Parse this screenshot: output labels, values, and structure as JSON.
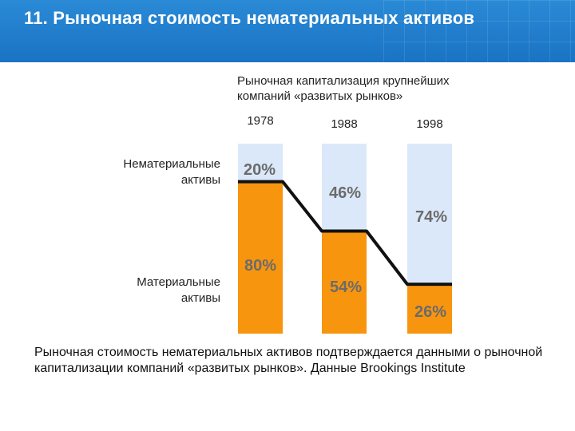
{
  "slide": {
    "title": "11. Рыночная стоимость нематериальных активов",
    "caption": "Рыночная стоимость нематериальных активов подтверждается данными о рыночной капитализации компаний «развитых рынков». Данные Brookings Institute"
  },
  "colors": {
    "header": "#1a73c4",
    "intangible": "#dbe8f9",
    "tangible": "#f7950f",
    "line": "#111111",
    "label_text": "#6b6b6b"
  },
  "chart_data": {
    "type": "bar",
    "stacked": true,
    "title": "Рыночная капитализация крупнейших компаний «развитых рынков»",
    "categories": [
      "1978",
      "1988",
      "1998"
    ],
    "ylim": [
      0,
      100
    ],
    "series": [
      {
        "name": "Материальные активы",
        "values": [
          80,
          54,
          26
        ],
        "labels": [
          "80%",
          "54%",
          "26%"
        ]
      },
      {
        "name": "Нематериальные активы",
        "values": [
          20,
          46,
          74
        ],
        "labels": [
          "20%",
          "46%",
          "74%"
        ]
      }
    ],
    "legend": [
      "Нематериальные активы",
      "Материальные активы"
    ]
  }
}
